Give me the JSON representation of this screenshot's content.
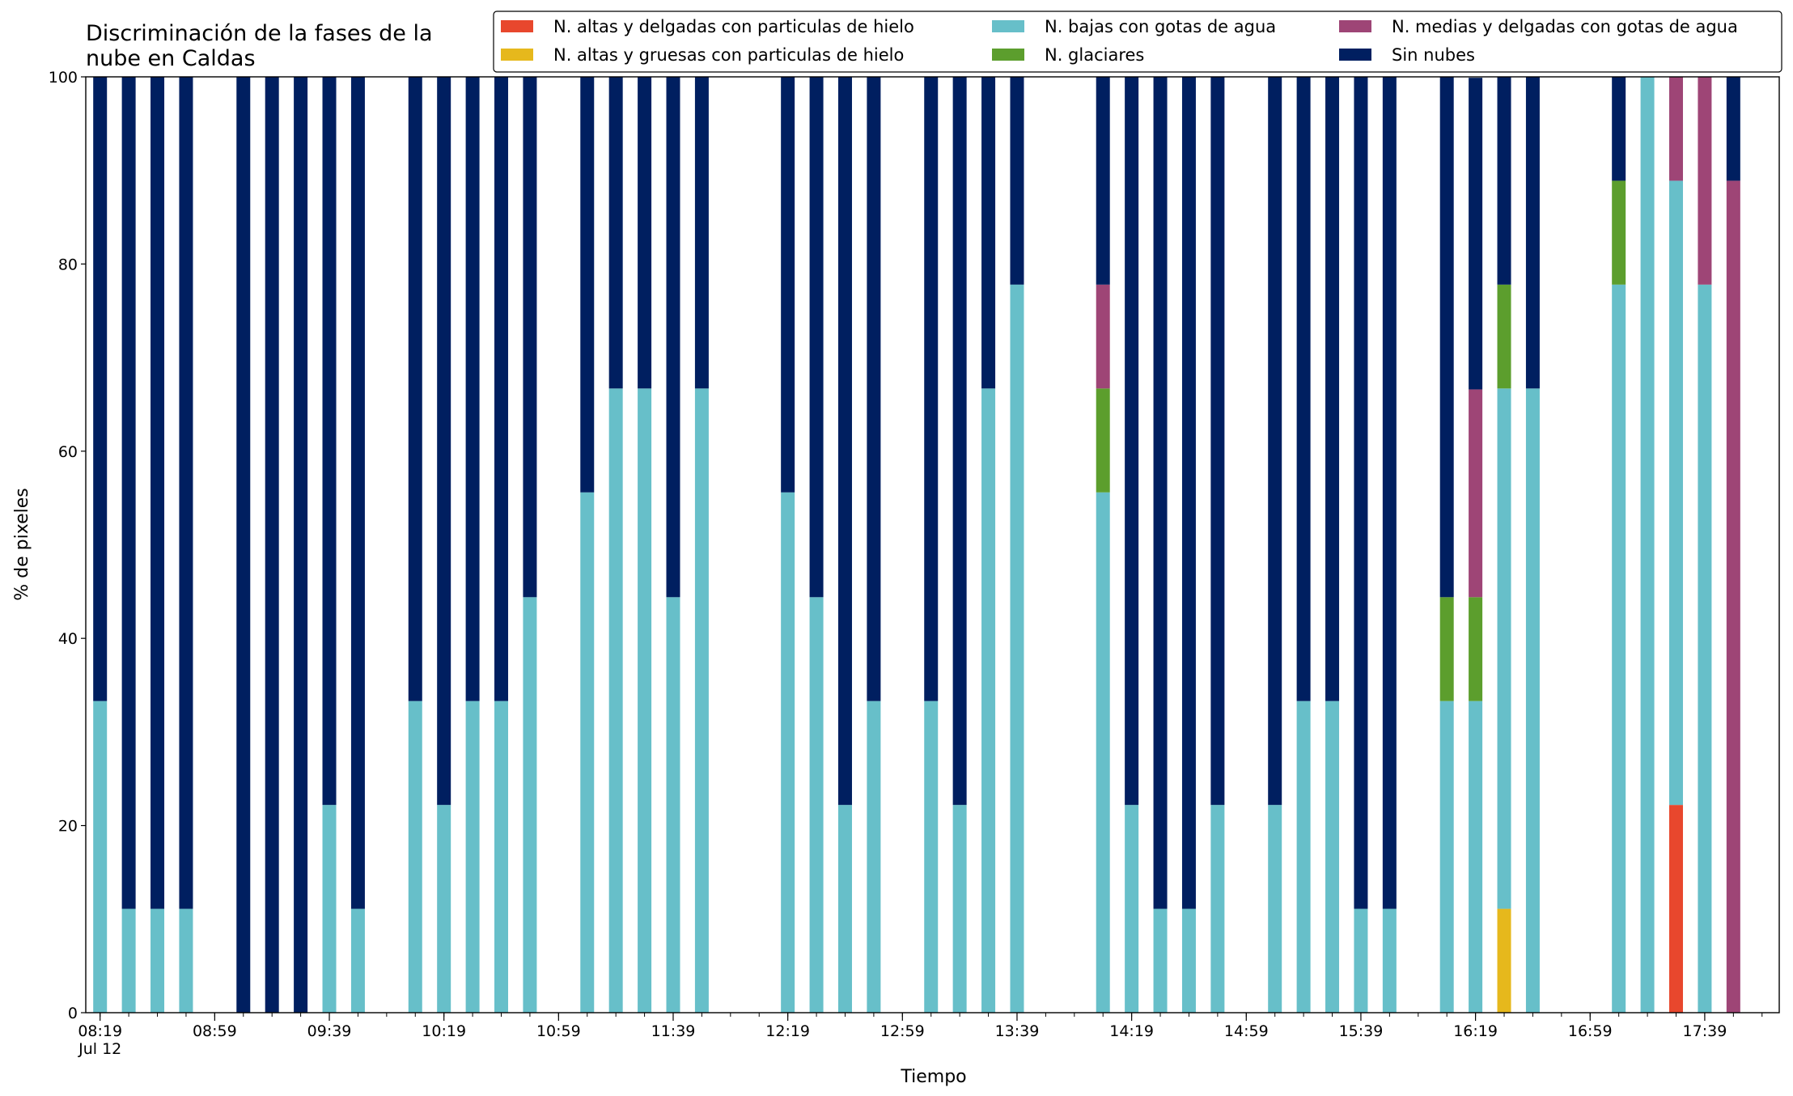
{
  "chart_data": {
    "type": "stacked_bar",
    "title": "Discriminación de la fases de la\nnube en Caldas",
    "xlabel": "Tiempo",
    "ylabel": "% de pixeles",
    "x": [
      "08:19",
      "08:29",
      "08:39",
      "08:49",
      "09:09",
      "09:19",
      "09:29",
      "09:39",
      "09:49",
      "10:09",
      "10:19",
      "10:29",
      "10:39",
      "10:49",
      "11:09",
      "11:19",
      "11:29",
      "11:39",
      "11:49",
      "12:19",
      "12:29",
      "12:39",
      "12:49",
      "13:09",
      "13:19",
      "13:29",
      "13:39",
      "14:09",
      "14:19",
      "14:29",
      "14:39",
      "14:49",
      "15:09",
      "15:19",
      "15:29",
      "15:39",
      "15:49",
      "16:09",
      "16:19",
      "16:29",
      "16:39",
      "17:09",
      "17:19",
      "17:29",
      "17:39",
      "17:49"
    ],
    "series": [
      {
        "name": "N. altas y delgadas con particulas de hielo",
        "color": "#e8472d",
        "values": [
          0,
          0,
          0,
          0,
          0,
          0,
          0,
          0,
          0,
          0,
          0,
          0,
          0,
          0,
          0,
          0,
          0,
          0,
          0,
          0,
          0,
          0,
          0,
          0,
          0,
          0,
          0,
          0,
          0,
          0,
          0,
          0,
          0,
          0,
          0,
          0,
          0,
          0,
          0,
          0,
          0,
          0,
          0,
          22.2,
          0,
          0
        ]
      },
      {
        "name": "N. altas y gruesas con particulas de hielo",
        "color": "#e6b81c",
        "values": [
          0,
          0,
          0,
          0,
          0,
          0,
          0,
          0,
          0,
          0,
          0,
          0,
          0,
          0,
          0,
          0,
          0,
          0,
          0,
          0,
          0,
          0,
          0,
          0,
          0,
          0,
          0,
          0,
          0,
          0,
          0,
          0,
          0,
          0,
          0,
          0,
          0,
          0,
          0,
          11.1,
          0,
          0,
          0,
          0,
          0,
          0
        ]
      },
      {
        "name": "N. bajas con gotas de agua",
        "color": "#67bfc9",
        "values": [
          33.3,
          11.1,
          11.1,
          11.1,
          0,
          0,
          0,
          22.2,
          11.1,
          33.3,
          22.2,
          33.3,
          33.3,
          44.4,
          55.6,
          66.7,
          66.7,
          44.4,
          66.7,
          55.6,
          44.4,
          22.2,
          33.3,
          33.3,
          22.2,
          66.7,
          77.8,
          55.6,
          22.2,
          11.1,
          11.1,
          22.2,
          22.2,
          33.3,
          33.3,
          11.1,
          11.1,
          33.3,
          33.3,
          55.6,
          66.7,
          77.8,
          100,
          66.7,
          77.8,
          0
        ]
      },
      {
        "name": "N. glaciares",
        "color": "#5c9e2d",
        "values": [
          0,
          0,
          0,
          0,
          0,
          0,
          0,
          0,
          0,
          0,
          0,
          0,
          0,
          0,
          0,
          0,
          0,
          0,
          0,
          0,
          0,
          0,
          0,
          0,
          0,
          0,
          0,
          11.1,
          0,
          0,
          0,
          0,
          0,
          0,
          0,
          0,
          0,
          11.1,
          11.1,
          11.1,
          0,
          11.1,
          0,
          0,
          0,
          0
        ]
      },
      {
        "name": "N. medias y delgadas con gotas de agua",
        "color": "#9e4576",
        "values": [
          0,
          0,
          0,
          0,
          0,
          0,
          0,
          0,
          0,
          0,
          0,
          0,
          0,
          0,
          0,
          0,
          0,
          0,
          0,
          0,
          0,
          0,
          0,
          0,
          0,
          0,
          0,
          11.1,
          0,
          0,
          0,
          0,
          0,
          0,
          0,
          0,
          0,
          0,
          22.2,
          0,
          0,
          0,
          0,
          11.1,
          22.2,
          88.9
        ]
      },
      {
        "name": "Sin nubes",
        "color": "#001f60",
        "values": [
          66.7,
          88.9,
          88.9,
          88.9,
          100,
          100,
          100,
          77.8,
          88.9,
          66.7,
          77.8,
          66.7,
          66.7,
          55.6,
          44.4,
          33.3,
          33.3,
          55.6,
          33.3,
          44.4,
          55.6,
          77.8,
          66.7,
          66.7,
          77.8,
          33.3,
          22.2,
          22.2,
          77.8,
          88.9,
          88.9,
          77.8,
          77.8,
          66.7,
          66.7,
          88.9,
          88.9,
          55.6,
          33.3,
          22.2,
          33.3,
          11.1,
          0,
          0,
          0,
          11.1
        ]
      }
    ],
    "xlim": [
      "08:14",
      "18:05"
    ],
    "xticks": [
      {
        "value": "08:19",
        "label": "08:19\nJul 12"
      },
      "08:59",
      "09:39",
      "10:19",
      "10:59",
      "11:39",
      "12:19",
      "12:59",
      "13:39",
      "14:19",
      "14:59",
      "15:39",
      "16:19",
      "16:59",
      "17:39"
    ],
    "ylim": [
      0,
      100
    ],
    "yticks": [
      0,
      20,
      40,
      60,
      80,
      100
    ],
    "legend": "upper right"
  }
}
